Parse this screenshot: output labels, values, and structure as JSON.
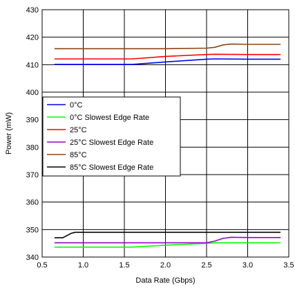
{
  "chart_data": {
    "type": "line",
    "xlabel": "Data Rate (Gbps)",
    "ylabel": "Power (mW)",
    "xlim": [
      0.5,
      3.5
    ],
    "ylim": [
      340,
      430
    ],
    "xticks": [
      "0.5",
      "1.0",
      "1.5",
      "2.0",
      "2.5",
      "3.0",
      "3.5"
    ],
    "yticks": [
      "340",
      "350",
      "360",
      "370",
      "380",
      "390",
      "400",
      "410",
      "420",
      "430"
    ],
    "grid": true,
    "legend_position": "left",
    "series": [
      {
        "name": "0°C",
        "color": "#0000ff",
        "x": [
          0.65,
          1.0,
          1.6,
          2.0,
          2.5,
          2.6,
          3.0,
          3.4
        ],
        "y": [
          410.1,
          410.1,
          410.1,
          411.0,
          412.0,
          412.1,
          412.0,
          412.0
        ]
      },
      {
        "name": "0°C Slowest Edge Rate",
        "color": "#00ff00",
        "x": [
          0.65,
          1.0,
          1.6,
          2.0,
          2.5,
          2.6,
          3.0,
          3.4
        ],
        "y": [
          343.6,
          343.6,
          343.6,
          344.3,
          345.0,
          345.2,
          345.2,
          345.2
        ]
      },
      {
        "name": "25°C",
        "color": "#ff0000",
        "x": [
          0.65,
          1.0,
          1.6,
          2.0,
          2.5,
          2.6,
          3.0,
          3.4
        ],
        "y": [
          412.1,
          412.1,
          412.1,
          413.0,
          413.7,
          413.8,
          413.7,
          413.7
        ]
      },
      {
        "name": "25°C Slowest Edge Rate",
        "color": "#9900cc",
        "x": [
          0.65,
          1.0,
          1.6,
          2.0,
          2.5,
          2.6,
          2.7,
          2.8,
          3.0,
          3.4
        ],
        "y": [
          345.2,
          345.2,
          345.2,
          345.2,
          345.2,
          345.8,
          346.8,
          347.2,
          347.1,
          347.1
        ]
      },
      {
        "name": "85°C",
        "color": "#8b4513",
        "x": [
          0.65,
          1.0,
          1.6,
          2.0,
          2.5,
          2.6,
          2.7,
          2.8,
          3.0,
          3.4
        ],
        "y": [
          415.8,
          415.8,
          415.8,
          415.8,
          416.0,
          416.3,
          417.2,
          417.5,
          417.4,
          417.4
        ]
      },
      {
        "name": "85°C Slowest Edge Rate",
        "color": "#000000",
        "x": [
          0.65,
          0.75,
          0.8,
          0.85,
          0.9,
          1.0,
          1.6,
          2.0,
          2.5,
          3.0,
          3.4
        ],
        "y": [
          347.0,
          347.0,
          347.8,
          348.6,
          349.0,
          349.0,
          349.0,
          349.0,
          349.0,
          349.0,
          349.0
        ]
      }
    ]
  }
}
